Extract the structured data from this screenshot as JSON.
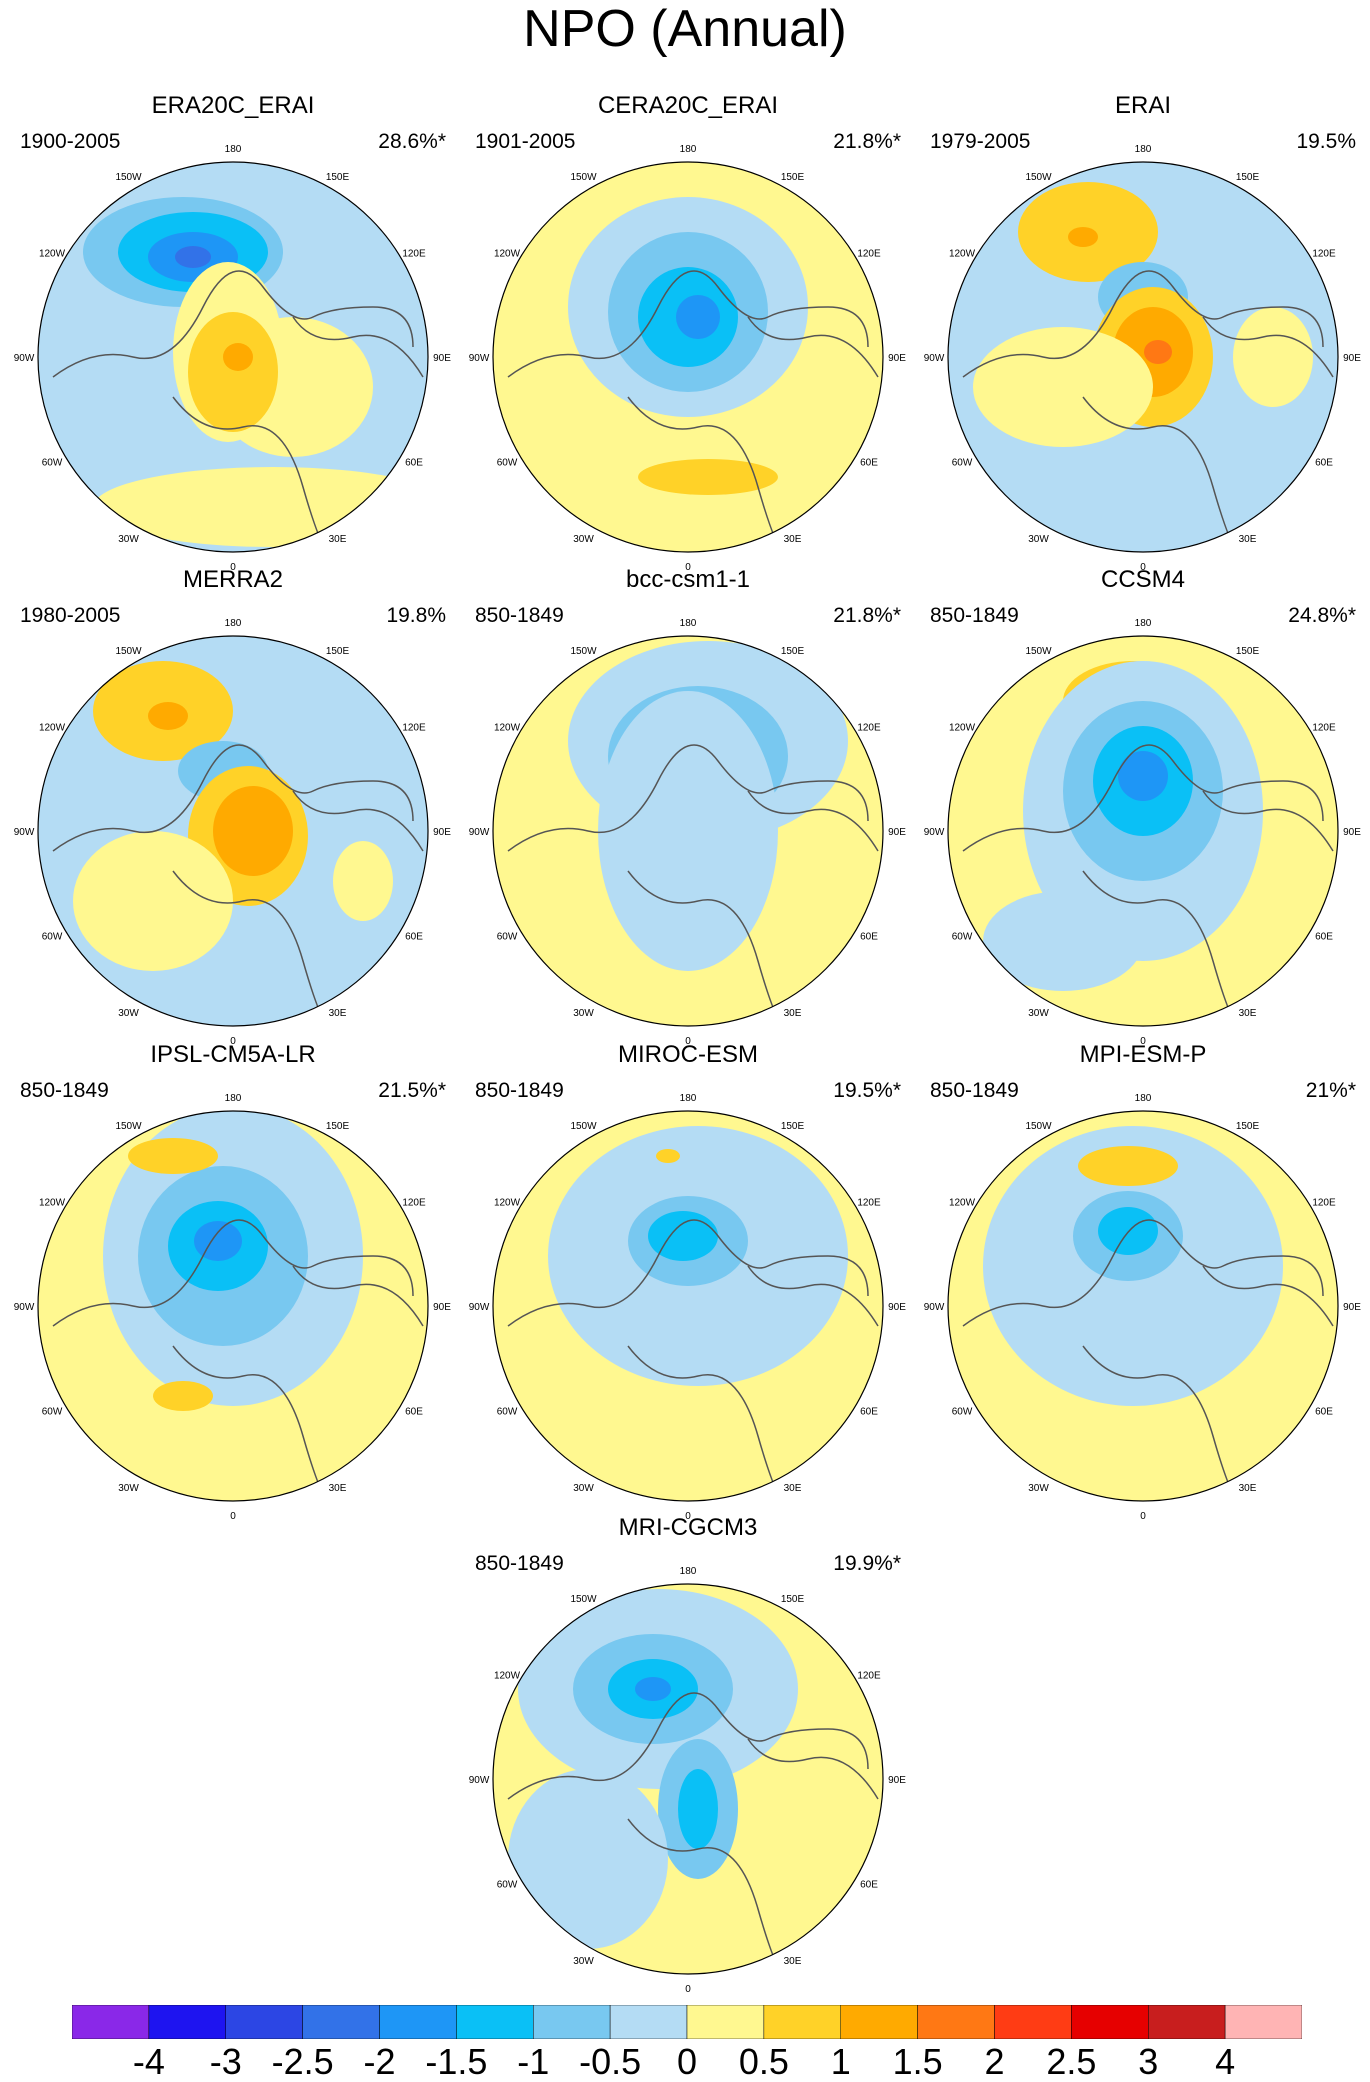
{
  "title": "NPO (Annual)",
  "panels": [
    {
      "name": "ERA20C_ERAI",
      "period": "1900-2005",
      "variance": "28.6%*"
    },
    {
      "name": "CERA20C_ERAI",
      "period": "1901-2005",
      "variance": "21.8%*"
    },
    {
      "name": "ERAI",
      "period": "1979-2005",
      "variance": "19.5%"
    },
    {
      "name": "MERRA2",
      "period": "1980-2005",
      "variance": "19.8%"
    },
    {
      "name": "bcc-csm1-1",
      "period": "850-1849",
      "variance": "21.8%*"
    },
    {
      "name": "CCSM4",
      "period": "850-1849",
      "variance": "24.8%*"
    },
    {
      "name": "IPSL-CM5A-LR",
      "period": "850-1849",
      "variance": "21.5%*"
    },
    {
      "name": "MIROC-ESM",
      "period": "850-1849",
      "variance": "19.5%*"
    },
    {
      "name": "MPI-ESM-P",
      "period": "850-1849",
      "variance": "21%*"
    },
    {
      "name": "MRI-CGCM3",
      "period": "850-1849",
      "variance": "19.9%*"
    }
  ],
  "longitude_labels": [
    "180",
    "150W",
    "150E",
    "120W",
    "120E",
    "90W",
    "90E",
    "60W",
    "60E",
    "30W",
    "30E",
    "0"
  ],
  "colorbar": {
    "labels": [
      "-4",
      "-3",
      "-2.5",
      "-2",
      "-1.5",
      "-1",
      "-0.5",
      "0",
      "0.5",
      "1",
      "1.5",
      "2",
      "2.5",
      "3",
      "4"
    ],
    "colors": [
      "#8a28e8",
      "#1e14f0",
      "#2c46e4",
      "#3272e8",
      "#1e96f6",
      "#0ac0f6",
      "#78c8f0",
      "#b4dcf4",
      "#fff890",
      "#ffd228",
      "#ffaa00",
      "#ff7814",
      "#ff3c14",
      "#e60000",
      "#c81e1e",
      "#ffb4b4"
    ]
  }
}
